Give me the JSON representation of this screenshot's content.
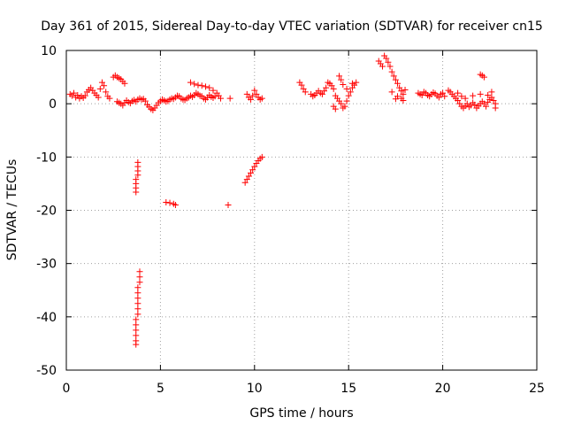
{
  "chart_data": {
    "type": "scatter",
    "title": "Day 361 of 2015, Sidereal Day-to-day VTEC variation (SDTVAR) for receiver cn15",
    "xlabel": "GPS time / hours",
    "ylabel": "SDTVAR / TECUs",
    "xlim": [
      0,
      25
    ],
    "ylim": [
      -50,
      10
    ],
    "xticks": [
      0,
      5,
      10,
      15,
      20,
      25
    ],
    "yticks": [
      -50,
      -40,
      -30,
      -20,
      -10,
      0,
      10
    ],
    "grid": true,
    "marker": "+",
    "color": "#ff0000",
    "series": [
      {
        "name": "SDTVAR",
        "points": [
          [
            0.2,
            1.8
          ],
          [
            0.3,
            1.5
          ],
          [
            0.4,
            2.0
          ],
          [
            0.5,
            1.2
          ],
          [
            0.6,
            1.6
          ],
          [
            0.7,
            1.0
          ],
          [
            0.8,
            1.4
          ],
          [
            0.9,
            1.1
          ],
          [
            1.0,
            1.5
          ],
          [
            1.1,
            2.2
          ],
          [
            1.2,
            2.6
          ],
          [
            1.3,
            3.0
          ],
          [
            1.4,
            2.5
          ],
          [
            1.5,
            2.0
          ],
          [
            1.6,
            1.6
          ],
          [
            1.7,
            1.2
          ],
          [
            1.8,
            2.8
          ],
          [
            1.9,
            4.0
          ],
          [
            2.0,
            3.4
          ],
          [
            2.1,
            2.2
          ],
          [
            2.2,
            1.4
          ],
          [
            2.3,
            1.0
          ],
          [
            2.5,
            5.0
          ],
          [
            2.6,
            5.3
          ],
          [
            2.7,
            5.0
          ],
          [
            2.8,
            4.8
          ],
          [
            2.9,
            4.6
          ],
          [
            3.0,
            4.2
          ],
          [
            3.1,
            3.8
          ],
          [
            2.7,
            0.4
          ],
          [
            2.8,
            0.2
          ],
          [
            2.9,
            0.0
          ],
          [
            3.0,
            -0.3
          ],
          [
            3.1,
            0.2
          ],
          [
            3.2,
            0.6
          ],
          [
            3.3,
            0.3
          ],
          [
            3.4,
            0.1
          ],
          [
            3.5,
            0.5
          ],
          [
            3.6,
            0.7
          ],
          [
            3.7,
            0.4
          ],
          [
            3.8,
            0.8
          ],
          [
            3.9,
            1.0
          ],
          [
            4.0,
            0.8
          ],
          [
            4.1,
            0.9
          ],
          [
            4.2,
            0.5
          ],
          [
            4.3,
            -0.2
          ],
          [
            4.4,
            -0.6
          ],
          [
            4.5,
            -1.0
          ],
          [
            4.6,
            -1.2
          ],
          [
            4.7,
            -0.8
          ],
          [
            4.8,
            -0.3
          ],
          [
            4.9,
            0.2
          ],
          [
            5.0,
            0.5
          ],
          [
            5.1,
            0.8
          ],
          [
            5.2,
            0.6
          ],
          [
            5.3,
            0.4
          ],
          [
            5.4,
            0.5
          ],
          [
            5.5,
            0.8
          ],
          [
            5.6,
            1.0
          ],
          [
            5.7,
            0.9
          ],
          [
            5.8,
            1.2
          ],
          [
            5.9,
            1.5
          ],
          [
            6.0,
            1.4
          ],
          [
            6.1,
            1.0
          ],
          [
            6.2,
            0.8
          ],
          [
            6.3,
            0.7
          ],
          [
            6.4,
            1.0
          ],
          [
            6.5,
            1.2
          ],
          [
            6.6,
            1.5
          ],
          [
            6.7,
            1.3
          ],
          [
            6.8,
            1.6
          ],
          [
            6.9,
            2.0
          ],
          [
            7.0,
            1.8
          ],
          [
            7.1,
            1.5
          ],
          [
            7.2,
            1.4
          ],
          [
            7.3,
            1.0
          ],
          [
            7.4,
            0.8
          ],
          [
            7.5,
            1.2
          ],
          [
            7.6,
            1.6
          ],
          [
            7.7,
            1.3
          ],
          [
            7.8,
            1.1
          ],
          [
            7.9,
            1.4
          ],
          [
            6.6,
            4.0
          ],
          [
            6.8,
            3.7
          ],
          [
            7.0,
            3.5
          ],
          [
            7.2,
            3.4
          ],
          [
            7.4,
            3.2
          ],
          [
            7.6,
            3.0
          ],
          [
            7.8,
            2.5
          ],
          [
            8.0,
            2.0
          ],
          [
            8.1,
            1.5
          ],
          [
            8.2,
            1.0
          ],
          [
            8.7,
            1.0
          ],
          [
            9.6,
            1.8
          ],
          [
            9.7,
            1.2
          ],
          [
            9.8,
            0.8
          ],
          [
            9.9,
            1.5
          ],
          [
            10.0,
            2.5
          ],
          [
            10.1,
            1.8
          ],
          [
            10.2,
            1.2
          ],
          [
            10.3,
            0.8
          ],
          [
            10.4,
            1.0
          ],
          [
            12.4,
            4.0
          ],
          [
            12.5,
            3.5
          ],
          [
            12.6,
            2.8
          ],
          [
            12.7,
            2.2
          ],
          [
            13.0,
            1.8
          ],
          [
            13.1,
            1.4
          ],
          [
            13.2,
            1.6
          ],
          [
            13.3,
            2.0
          ],
          [
            13.4,
            2.4
          ],
          [
            13.5,
            2.0
          ],
          [
            13.6,
            1.8
          ],
          [
            13.7,
            2.4
          ],
          [
            13.8,
            3.0
          ],
          [
            13.9,
            4.0
          ],
          [
            14.0,
            3.8
          ],
          [
            14.1,
            3.4
          ],
          [
            14.2,
            2.8
          ],
          [
            14.3,
            1.5
          ],
          [
            14.4,
            1.0
          ],
          [
            14.5,
            0.5
          ],
          [
            14.6,
            0.0
          ],
          [
            14.7,
            -0.8
          ],
          [
            14.8,
            -0.5
          ],
          [
            14.9,
            0.5
          ],
          [
            15.0,
            1.5
          ],
          [
            15.1,
            2.2
          ],
          [
            15.2,
            3.0
          ],
          [
            15.3,
            3.5
          ],
          [
            15.4,
            4.0
          ],
          [
            14.5,
            5.2
          ],
          [
            14.6,
            4.5
          ],
          [
            14.7,
            3.6
          ],
          [
            14.2,
            -0.5
          ],
          [
            14.3,
            -1.0
          ],
          [
            14.9,
            2.8
          ],
          [
            15.2,
            3.8
          ],
          [
            16.6,
            8.0
          ],
          [
            16.7,
            7.5
          ],
          [
            16.8,
            7.0
          ],
          [
            16.9,
            9.0
          ],
          [
            17.0,
            8.5
          ],
          [
            17.1,
            7.8
          ],
          [
            17.2,
            7.0
          ],
          [
            17.3,
            6.0
          ],
          [
            17.4,
            5.2
          ],
          [
            17.5,
            4.5
          ],
          [
            17.6,
            3.8
          ],
          [
            17.7,
            3.0
          ],
          [
            17.8,
            2.4
          ],
          [
            17.9,
            1.8
          ],
          [
            18.0,
            2.6
          ],
          [
            17.8,
            1.0
          ],
          [
            17.9,
            0.6
          ],
          [
            17.6,
            1.4
          ],
          [
            17.5,
            0.9
          ],
          [
            17.3,
            2.2
          ],
          [
            18.7,
            2.0
          ],
          [
            18.8,
            1.8
          ],
          [
            18.9,
            1.6
          ],
          [
            19.0,
            2.2
          ],
          [
            19.1,
            2.0
          ],
          [
            19.2,
            1.6
          ],
          [
            19.3,
            1.4
          ],
          [
            19.4,
            1.8
          ],
          [
            19.5,
            2.1
          ],
          [
            19.6,
            1.9
          ],
          [
            19.7,
            1.5
          ],
          [
            19.8,
            1.2
          ],
          [
            19.9,
            1.8
          ],
          [
            20.0,
            2.0
          ],
          [
            20.1,
            1.4
          ],
          [
            20.3,
            2.5
          ],
          [
            20.4,
            2.2
          ],
          [
            20.5,
            1.8
          ],
          [
            20.6,
            1.4
          ],
          [
            20.7,
            1.0
          ],
          [
            20.8,
            0.6
          ],
          [
            20.9,
            0.0
          ],
          [
            21.0,
            -0.5
          ],
          [
            21.1,
            -0.8
          ],
          [
            21.2,
            -0.4
          ],
          [
            21.3,
            0.0
          ],
          [
            21.4,
            -0.6
          ],
          [
            21.5,
            -0.3
          ],
          [
            21.6,
            0.2
          ],
          [
            21.7,
            -0.2
          ],
          [
            21.8,
            -0.8
          ],
          [
            21.9,
            -0.4
          ],
          [
            22.0,
            0.0
          ],
          [
            22.1,
            0.4
          ],
          [
            22.2,
            0.0
          ],
          [
            22.3,
            -0.5
          ],
          [
            22.4,
            0.3
          ],
          [
            22.5,
            0.8
          ],
          [
            22.6,
            1.2
          ],
          [
            22.7,
            0.6
          ],
          [
            22.8,
            0.0
          ],
          [
            22.8,
            -0.8
          ],
          [
            20.8,
            2.0
          ],
          [
            21.0,
            1.4
          ],
          [
            21.2,
            1.0
          ],
          [
            21.6,
            1.5
          ],
          [
            22.0,
            1.8
          ],
          [
            22.4,
            1.6
          ],
          [
            22.6,
            2.2
          ],
          [
            22.0,
            5.5
          ],
          [
            22.1,
            5.3
          ],
          [
            22.2,
            5.0
          ],
          [
            3.8,
            -11.0
          ],
          [
            3.8,
            -11.8
          ],
          [
            3.8,
            -12.6
          ],
          [
            3.8,
            -13.4
          ],
          [
            3.7,
            -14.2
          ],
          [
            3.7,
            -15.0
          ],
          [
            3.7,
            -15.8
          ],
          [
            3.7,
            -16.6
          ],
          [
            5.3,
            -18.5
          ],
          [
            5.5,
            -18.6
          ],
          [
            5.7,
            -18.8
          ],
          [
            5.8,
            -19.0
          ],
          [
            8.6,
            -19.0
          ],
          [
            9.5,
            -14.8
          ],
          [
            9.6,
            -14.2
          ],
          [
            9.7,
            -13.6
          ],
          [
            9.8,
            -13.0
          ],
          [
            9.9,
            -12.4
          ],
          [
            10.0,
            -11.8
          ],
          [
            10.1,
            -11.2
          ],
          [
            10.2,
            -10.7
          ],
          [
            10.3,
            -10.3
          ],
          [
            10.4,
            -10.0
          ],
          [
            3.9,
            -31.5
          ],
          [
            3.9,
            -32.5
          ],
          [
            3.9,
            -33.5
          ],
          [
            3.8,
            -34.5
          ],
          [
            3.8,
            -35.5
          ],
          [
            3.8,
            -36.5
          ],
          [
            3.8,
            -37.5
          ],
          [
            3.8,
            -38.5
          ],
          [
            3.8,
            -39.5
          ],
          [
            3.7,
            -40.5
          ],
          [
            3.7,
            -41.5
          ],
          [
            3.7,
            -42.5
          ],
          [
            3.7,
            -43.5
          ],
          [
            3.7,
            -44.5
          ],
          [
            3.7,
            -45.2
          ]
        ]
      }
    ]
  }
}
